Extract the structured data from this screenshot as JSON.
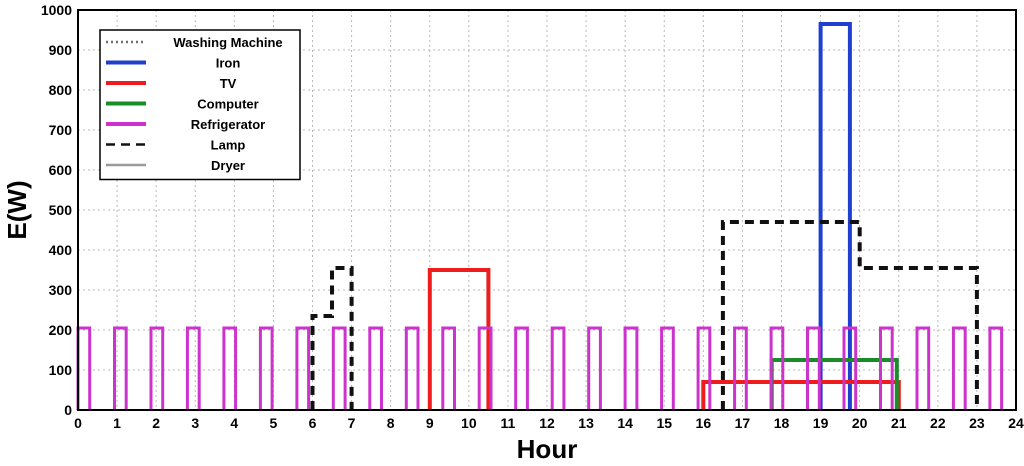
{
  "chart_data": {
    "type": "line",
    "title": "",
    "xlabel": "Hour",
    "ylabel": "E(W)",
    "xlim": [
      0,
      24
    ],
    "ylim": [
      0,
      1000
    ],
    "xticks": [
      "0",
      "1",
      "2",
      "3",
      "4",
      "5",
      "6",
      "7",
      "8",
      "9",
      "10",
      "11",
      "12",
      "13",
      "14",
      "15",
      "16",
      "17",
      "18",
      "19",
      "20",
      "21",
      "22",
      "23",
      "24"
    ],
    "yticks": [
      "0",
      "100",
      "200",
      "300",
      "400",
      "500",
      "600",
      "700",
      "800",
      "900",
      "1000"
    ],
    "grid": true,
    "legend_position": "top-left",
    "series": [
      {
        "name": "Washing Machine",
        "color": "#707070",
        "style": "dotted",
        "points": []
      },
      {
        "name": "Iron",
        "color": "#1f3fcf",
        "style": "solid",
        "points": [
          [
            19,
            0
          ],
          [
            19,
            965
          ],
          [
            19.75,
            965
          ],
          [
            19.75,
            0
          ]
        ]
      },
      {
        "name": "TV",
        "color": "#ee1c1c",
        "style": "solid",
        "points": [
          [
            9,
            0
          ],
          [
            9,
            350
          ],
          [
            10.5,
            350
          ],
          [
            10.5,
            0
          ],
          [
            null,
            null
          ],
          [
            16,
            0
          ],
          [
            16,
            70
          ],
          [
            21,
            70
          ],
          [
            21,
            0
          ]
        ]
      },
      {
        "name": "Computer",
        "color": "#1b8c2a",
        "style": "solid",
        "points": [
          [
            17.75,
            0
          ],
          [
            17.75,
            125
          ],
          [
            20.95,
            125
          ],
          [
            20.95,
            0
          ]
        ]
      },
      {
        "name": "Refrigerator",
        "color": "#cc33cc",
        "style": "solid",
        "cycle": {
          "period": 0.9333,
          "on_duration": 0.3,
          "power": 205,
          "start": 0,
          "end": 24
        }
      },
      {
        "name": "Lamp",
        "color": "#111111",
        "style": "dashed",
        "points": [
          [
            6,
            0
          ],
          [
            6,
            235
          ],
          [
            6.5,
            235
          ],
          [
            6.5,
            355
          ],
          [
            7,
            355
          ],
          [
            7,
            0
          ],
          [
            null,
            null
          ],
          [
            16.5,
            0
          ],
          [
            16.5,
            470
          ],
          [
            20,
            470
          ],
          [
            20,
            355
          ],
          [
            23,
            355
          ],
          [
            23,
            0
          ]
        ]
      },
      {
        "name": "Dryer",
        "color": "#9a9a9a",
        "style": "solid",
        "points": []
      }
    ]
  }
}
